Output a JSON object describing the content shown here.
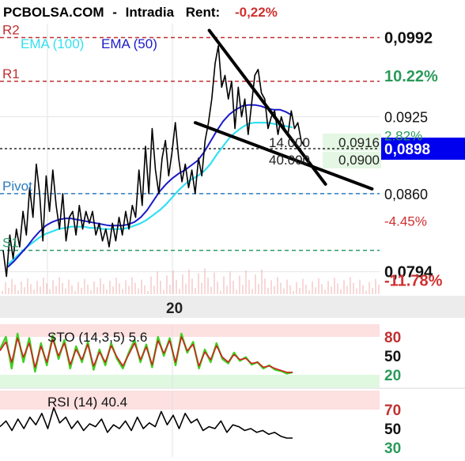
{
  "header": {
    "site": "PCBOLSA.COM",
    "separator": "-",
    "mode": "Intradia",
    "rent_label": "Rent:",
    "rent_value": "-0,22%"
  },
  "colors": {
    "price": "#000000",
    "ema100": "#33e0f0",
    "ema50": "#1a1acc",
    "resistance": "#c03030",
    "pivot": "#2b7cc0",
    "support": "#2e9a6a",
    "sto_k": "#40d020",
    "sto_d": "#d02020",
    "current_price_bg": "#0000ee",
    "positive": "#2a9a5a",
    "negative": "#d03030",
    "ob_zone": "#fde0e0",
    "os_zone": "#e0f8e0"
  },
  "chart_data": [
    {
      "type": "line",
      "name": "price-panel",
      "ylim": [
        0.0775,
        0.1005
      ],
      "x_tick_labels": [
        "20"
      ],
      "levels": [
        {
          "name": "R2",
          "value": 0.0992
        },
        {
          "name": "R1",
          "value": 0.0955
        },
        {
          "name": "Pivot",
          "value": 0.086
        },
        {
          "name": "S1",
          "value": 0.0812
        }
      ],
      "legend": [
        "EMA (100)",
        "EMA (50)"
      ],
      "right_axis": [
        {
          "label": "0,0992",
          "value": 0.0992,
          "pct": "10.22%",
          "pct_value": 0.0959,
          "tone": "positive"
        },
        {
          "label": "0.0925",
          "value": 0.0925,
          "pct": "2.82%",
          "pct_value": 0.0909,
          "tone": "positive"
        },
        {
          "label": "0,0898",
          "value": 0.0898,
          "highlight": true
        },
        {
          "label": "0,0860",
          "value": 0.086,
          "pct": "-4.45%",
          "pct_value": 0.0837,
          "tone": "negative"
        },
        {
          "label": "0,0794",
          "value": 0.0794,
          "pct": "-11.78%",
          "pct_value": 0.0786,
          "tone": "negative"
        }
      ],
      "order_book": {
        "rows": [
          {
            "qty": "14.000",
            "price": "0,0916"
          },
          {
            "qty": "40.000",
            "price": "0,0900"
          }
        ]
      },
      "series": [
        {
          "name": "Price",
          "values": [
            0.0812,
            0.079,
            0.0825,
            0.0805,
            0.083,
            0.0815,
            0.0845,
            0.0825,
            0.0865,
            0.084,
            0.0885,
            0.086,
            0.082,
            0.0875,
            0.0845,
            0.088,
            0.085,
            0.083,
            0.086,
            0.082,
            0.084,
            0.0845,
            0.0825,
            0.085,
            0.083,
            0.0845,
            0.0835,
            0.0845,
            0.0825,
            0.0835,
            0.082,
            0.083,
            0.0815,
            0.0835,
            0.082,
            0.084,
            0.0825,
            0.0845,
            0.083,
            0.085,
            0.084,
            0.088,
            0.085,
            0.09,
            0.086,
            0.0915,
            0.088,
            0.086,
            0.089,
            0.0905,
            0.0875,
            0.0895,
            0.092,
            0.089,
            0.087,
            0.0885,
            0.0865,
            0.088,
            0.086,
            0.089,
            0.0875,
            0.0905,
            0.092,
            0.094,
            0.097,
            0.0985,
            0.095,
            0.096,
            0.094,
            0.0955,
            0.0915,
            0.095,
            0.0925,
            0.094,
            0.091,
            0.0935,
            0.096,
            0.0965,
            0.0945,
            0.094,
            0.0915,
            0.0925,
            0.093,
            0.091,
            0.0925,
            0.0915,
            0.091,
            0.093,
            0.0915,
            0.092,
            0.0905,
            0.09
          ]
        },
        {
          "name": "EMA (50)",
          "values": [
            0.0798,
            0.0803,
            0.0809,
            0.0815,
            0.0822,
            0.0828,
            0.0833,
            0.0836,
            0.0838,
            0.0839,
            0.0839,
            0.0838,
            0.0837,
            0.0836,
            0.0835,
            0.0834,
            0.0833,
            0.0833,
            0.0833,
            0.0834,
            0.0836,
            0.084,
            0.0846,
            0.0854,
            0.0862,
            0.0868,
            0.0873,
            0.0877,
            0.088,
            0.0884,
            0.0888,
            0.0895,
            0.0904,
            0.0913,
            0.0921,
            0.0927,
            0.0931,
            0.0934,
            0.0935,
            0.0935,
            0.0934,
            0.0932,
            0.0931,
            0.0931,
            0.0929,
            0.0926
          ]
        },
        {
          "name": "EMA (100)",
          "values": [
            0.08,
            0.0805,
            0.081,
            0.0815,
            0.0819,
            0.0823,
            0.0826,
            0.0828,
            0.083,
            0.0831,
            0.0832,
            0.0832,
            0.0832,
            0.0831,
            0.0831,
            0.083,
            0.083,
            0.083,
            0.083,
            0.0831,
            0.0833,
            0.0835,
            0.0838,
            0.0842,
            0.0846,
            0.0851,
            0.0857,
            0.0863,
            0.0868,
            0.0872,
            0.0875,
            0.0879,
            0.0885,
            0.0893,
            0.09,
            0.0907,
            0.0912,
            0.0916,
            0.0919,
            0.092,
            0.092,
            0.092,
            0.0919,
            0.0918,
            0.0917,
            0.0916
          ]
        }
      ],
      "trendlines": [
        {
          "from": [
            0.45,
            0.0998
          ],
          "to": [
            0.7,
            0.0868
          ]
        },
        {
          "from": [
            0.42,
            0.092
          ],
          "to": [
            0.8,
            0.0864
          ]
        }
      ]
    },
    {
      "type": "line",
      "name": "stochastic-panel",
      "title": "STO (14,3,5) 5.6",
      "ylim": [
        0,
        100
      ],
      "levels": [
        80,
        50,
        20
      ],
      "tick_labels": [
        "80",
        "50",
        "20"
      ],
      "series": [
        {
          "name": "%K",
          "values": [
            60,
            80,
            30,
            85,
            40,
            78,
            25,
            70,
            35,
            82,
            45,
            75,
            30,
            65,
            40,
            72,
            28,
            60,
            35,
            70,
            45,
            30,
            55,
            75,
            40,
            68,
            32,
            80,
            50,
            78,
            35,
            85,
            55,
            72,
            30,
            60,
            40,
            70,
            45,
            38,
            55,
            42,
            48,
            36,
            40,
            30,
            35,
            28,
            26,
            22,
            24
          ]
        },
        {
          "name": "%D",
          "values": [
            58,
            72,
            40,
            78,
            48,
            70,
            32,
            65,
            40,
            76,
            50,
            70,
            36,
            60,
            44,
            68,
            34,
            56,
            40,
            66,
            48,
            34,
            52,
            70,
            44,
            64,
            36,
            74,
            54,
            74,
            40,
            80,
            58,
            68,
            34,
            56,
            44,
            66,
            48,
            40,
            52,
            44,
            46,
            38,
            40,
            32,
            34,
            30,
            27,
            24,
            24
          ]
        }
      ]
    },
    {
      "type": "line",
      "name": "rsi-panel",
      "title": "RSI (14) 40.4",
      "ylim": [
        20,
        90
      ],
      "levels": [
        70,
        50,
        30
      ],
      "tick_labels": [
        "70",
        "50",
        "30"
      ],
      "series": [
        {
          "name": "RSI",
          "values": [
            52,
            58,
            48,
            60,
            50,
            62,
            54,
            66,
            50,
            72,
            56,
            62,
            50,
            58,
            48,
            55,
            52,
            60,
            46,
            54,
            50,
            58,
            48,
            62,
            50,
            56,
            52,
            68,
            54,
            64,
            50,
            66,
            56,
            60,
            48,
            52,
            50,
            58,
            46,
            54,
            52,
            48,
            50,
            46,
            48,
            44,
            46,
            42,
            40,
            40
          ]
        }
      ]
    }
  ]
}
